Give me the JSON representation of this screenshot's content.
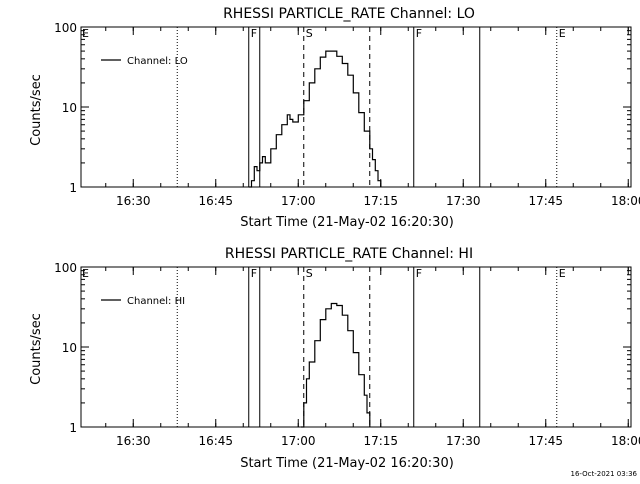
{
  "footer": {
    "timestamp": "16-Oct-2021 03:36"
  },
  "chart_data": [
    {
      "type": "line",
      "title": "RHESSI PARTICLE_RATE Channel: LO",
      "xlabel": "Start Time (21-May-02 16:20:30)",
      "ylabel": "Counts/sec",
      "yscale": "log",
      "ylim": [
        1,
        100
      ],
      "xlim": [
        "16:20:30",
        "18:00:30"
      ],
      "x_ticks": [
        "16:30",
        "16:45",
        "17:00",
        "17:15",
        "17:30",
        "17:45",
        "18:00"
      ],
      "y_ticks": [
        "1",
        "10",
        "100"
      ],
      "legend": {
        "position": "top-left",
        "entries": [
          "Channel: LO"
        ]
      },
      "markers": [
        {
          "time": "16:20:30",
          "label": "E",
          "style": "none"
        },
        {
          "time": "16:38:00",
          "label": "",
          "style": "dotted"
        },
        {
          "time": "16:51:00",
          "label": "F",
          "style": "solid"
        },
        {
          "time": "16:53:00",
          "label": "",
          "style": "solid"
        },
        {
          "time": "17:01:00",
          "label": "S",
          "style": "dashed"
        },
        {
          "time": "17:13:00",
          "label": "",
          "style": "dashed"
        },
        {
          "time": "17:21:00",
          "label": "F",
          "style": "solid"
        },
        {
          "time": "17:33:00",
          "label": "",
          "style": "solid"
        },
        {
          "time": "17:47:00",
          "label": "E",
          "style": "dotted"
        },
        {
          "time": "18:06:00",
          "label": "",
          "style": "dotted"
        }
      ],
      "series": [
        {
          "name": "Channel: LO",
          "x": [
            "16:51:00",
            "16:51:30",
            "16:52:00",
            "16:52:30",
            "16:53:00",
            "16:53:30",
            "16:54:00",
            "16:55:00",
            "16:56:00",
            "16:57:00",
            "16:58:00",
            "16:58:30",
            "16:59:00",
            "17:00:00",
            "17:01:00",
            "17:02:00",
            "17:03:00",
            "17:04:00",
            "17:05:00",
            "17:06:00",
            "17:07:00",
            "17:08:00",
            "17:09:00",
            "17:10:00",
            "17:11:00",
            "17:12:00",
            "17:13:00",
            "17:13:30",
            "17:14:00",
            "17:14:30",
            "17:15:00"
          ],
          "y": [
            1.0,
            1.2,
            1.8,
            1.6,
            2.0,
            2.4,
            2.0,
            3.0,
            4.5,
            6.0,
            8.0,
            7.0,
            6.5,
            8.0,
            12.0,
            20.0,
            30.0,
            42.0,
            50.0,
            50.0,
            43.0,
            35.0,
            25.0,
            15.0,
            8.5,
            5.0,
            3.0,
            2.2,
            1.6,
            1.2,
            1.0
          ]
        }
      ]
    },
    {
      "type": "line",
      "title": "RHESSI PARTICLE_RATE Channel: HI",
      "xlabel": "Start Time (21-May-02 16:20:30)",
      "ylabel": "Counts/sec",
      "yscale": "log",
      "ylim": [
        1,
        100
      ],
      "xlim": [
        "16:20:30",
        "18:00:30"
      ],
      "x_ticks": [
        "16:30",
        "16:45",
        "17:00",
        "17:15",
        "17:30",
        "17:45",
        "18:00"
      ],
      "y_ticks": [
        "1",
        "10",
        "100"
      ],
      "legend": {
        "position": "top-left",
        "entries": [
          "Channel: HI"
        ]
      },
      "markers": [
        {
          "time": "16:20:30",
          "label": "E",
          "style": "none"
        },
        {
          "time": "16:38:00",
          "label": "",
          "style": "dotted"
        },
        {
          "time": "16:51:00",
          "label": "F",
          "style": "solid"
        },
        {
          "time": "16:53:00",
          "label": "",
          "style": "solid"
        },
        {
          "time": "17:01:00",
          "label": "S",
          "style": "dashed"
        },
        {
          "time": "17:13:00",
          "label": "",
          "style": "dashed"
        },
        {
          "time": "17:21:00",
          "label": "F",
          "style": "solid"
        },
        {
          "time": "17:33:00",
          "label": "",
          "style": "solid"
        },
        {
          "time": "17:47:00",
          "label": "E",
          "style": "dotted"
        },
        {
          "time": "18:06:00",
          "label": "",
          "style": "dotted"
        }
      ],
      "series": [
        {
          "name": "Channel: HI",
          "x": [
            "17:00:30",
            "17:01:00",
            "17:01:30",
            "17:02:00",
            "17:03:00",
            "17:04:00",
            "17:05:00",
            "17:06:00",
            "17:07:00",
            "17:08:00",
            "17:09:00",
            "17:10:00",
            "17:11:00",
            "17:12:00",
            "17:12:30",
            "17:13:00"
          ],
          "y": [
            1.0,
            2.0,
            4.0,
            6.5,
            12.0,
            22.0,
            30.0,
            35.0,
            33.0,
            25.0,
            16.0,
            8.5,
            4.5,
            2.5,
            1.5,
            1.0
          ]
        }
      ]
    }
  ]
}
